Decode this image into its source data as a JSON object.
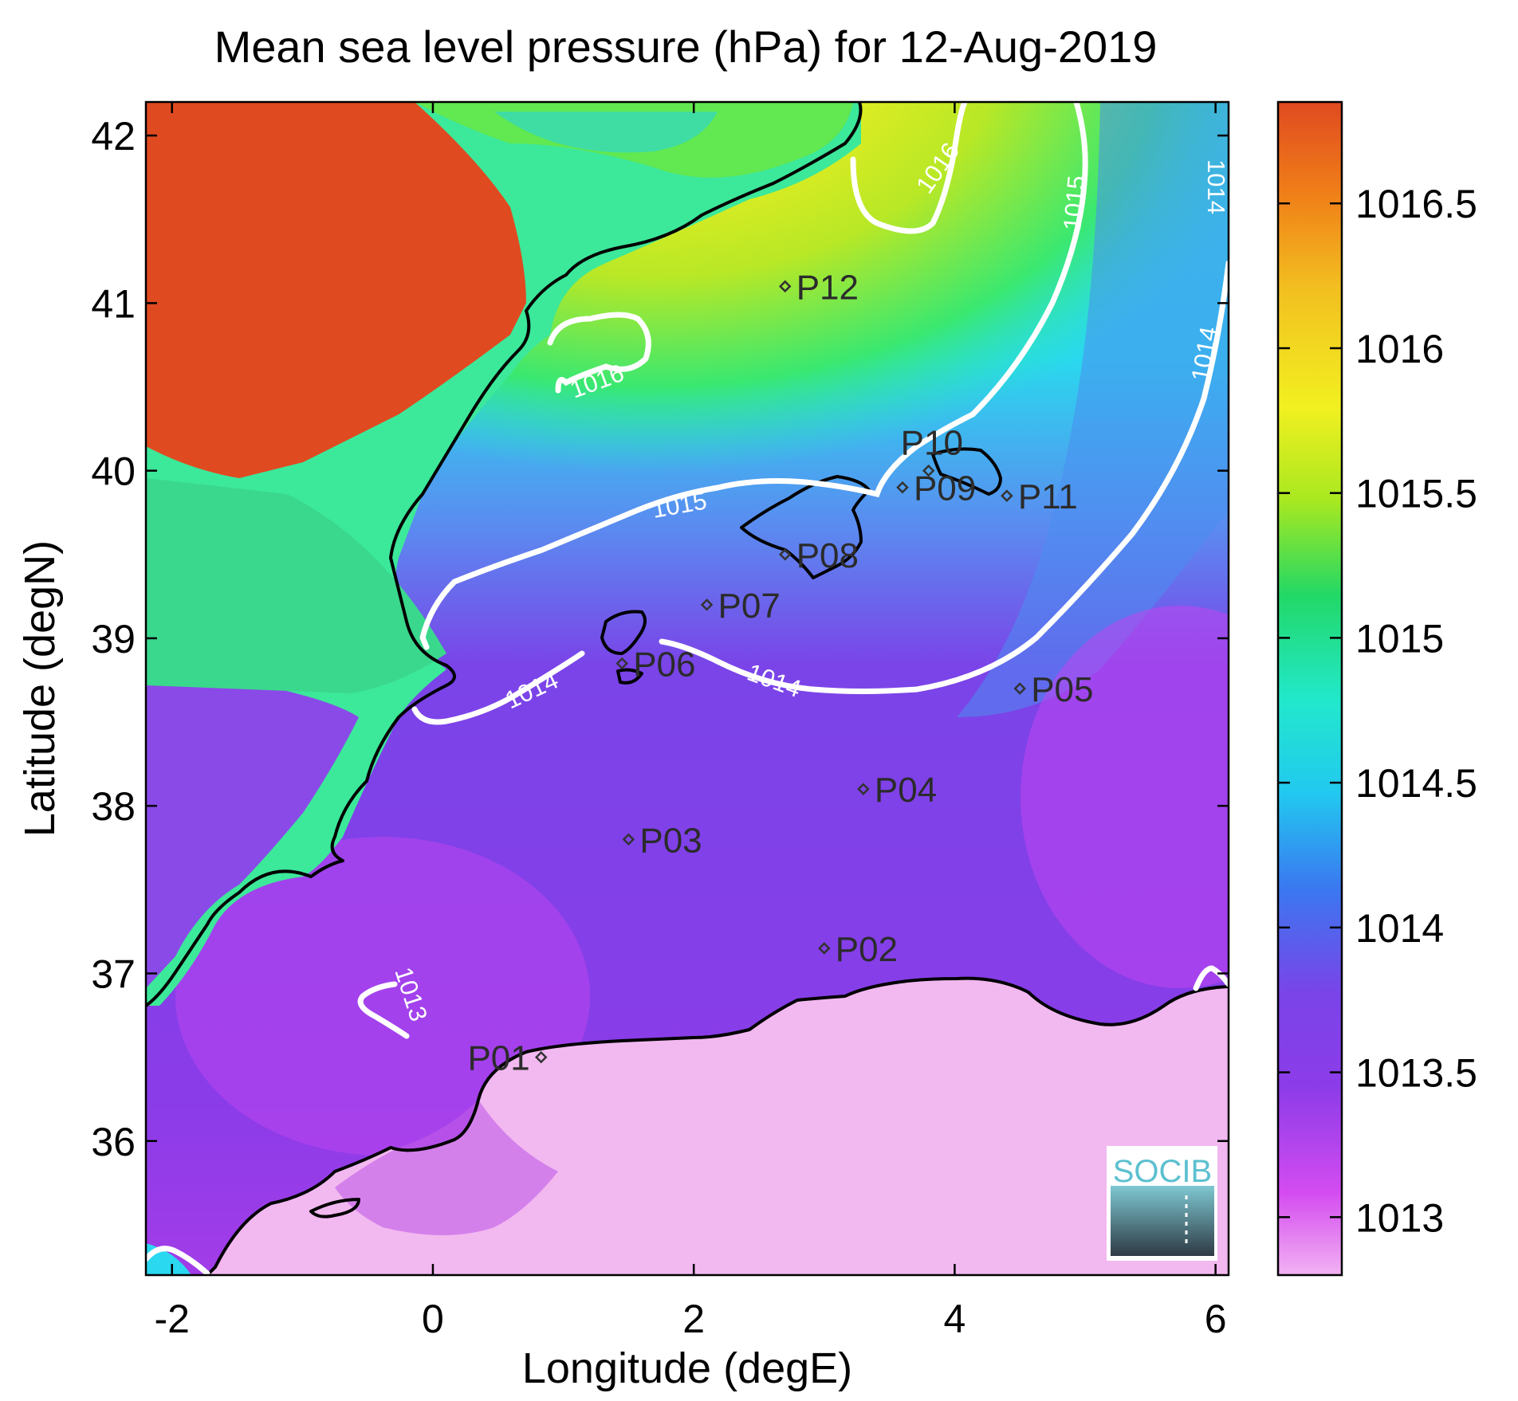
{
  "title": "Mean sea level pressure (hPa) for 12-Aug-2019",
  "x_axis": {
    "label": "Longitude (degE)",
    "ticks": [
      "-2",
      "0",
      "2",
      "4",
      "6"
    ],
    "range": [
      -2.2,
      6.1
    ]
  },
  "y_axis": {
    "label": "Latitude (degN)",
    "ticks": [
      "36",
      "37",
      "38",
      "39",
      "40",
      "41",
      "42"
    ],
    "range": [
      35.2,
      42.2
    ]
  },
  "colorbar": {
    "ticks": [
      "1013",
      "1013.5",
      "1014",
      "1014.5",
      "1015",
      "1015.5",
      "1016",
      "1016.5"
    ],
    "range": [
      1012.8,
      1016.85
    ],
    "colors": [
      "#f2b2f2",
      "#d44cf0",
      "#8c3ce8",
      "#7a44e8",
      "#3a78f0",
      "#22c8f0",
      "#22e8cc",
      "#22d866",
      "#a8e820",
      "#f2f020",
      "#f2c020",
      "#f08018",
      "#e04a20"
    ]
  },
  "contour_labels": [
    "1016",
    "1016",
    "1015",
    "1015",
    "1014",
    "1014",
    "1014",
    "1014",
    "1013"
  ],
  "stations": [
    {
      "name": "P01",
      "lon": 0.83,
      "lat": 36.5
    },
    {
      "name": "P02",
      "lon": 3.0,
      "lat": 37.15
    },
    {
      "name": "P03",
      "lon": 1.5,
      "lat": 37.8
    },
    {
      "name": "P04",
      "lon": 3.3,
      "lat": 38.1
    },
    {
      "name": "P05",
      "lon": 4.5,
      "lat": 38.7
    },
    {
      "name": "P06",
      "lon": 1.45,
      "lat": 38.85
    },
    {
      "name": "P07",
      "lon": 2.1,
      "lat": 39.2
    },
    {
      "name": "P08",
      "lon": 2.7,
      "lat": 39.5
    },
    {
      "name": "P09",
      "lon": 3.6,
      "lat": 39.9
    },
    {
      "name": "P10",
      "lon": 3.8,
      "lat": 40.0
    },
    {
      "name": "P11",
      "lon": 4.4,
      "lat": 39.85
    },
    {
      "name": "P12",
      "lon": 2.7,
      "lat": 41.1
    }
  ],
  "logo": {
    "text": "SOCIB",
    "color": "#5cc0d0"
  }
}
